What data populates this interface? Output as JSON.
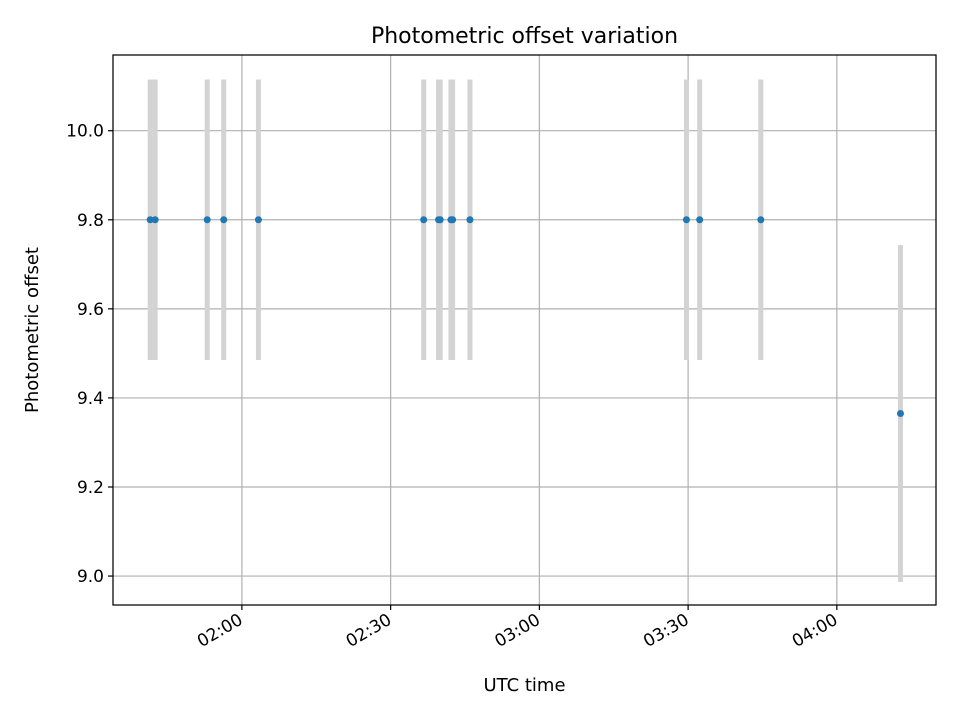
{
  "chart_data": {
    "type": "scatter",
    "title": "Photometric offset variation",
    "xlabel": "UTC time",
    "ylabel": "Photometric offset",
    "xlim": [
      "01:34",
      "04:20"
    ],
    "ylim": [
      8.935,
      10.17
    ],
    "grid": true,
    "x_ticks": [
      "02:00",
      "02:30",
      "03:00",
      "03:30",
      "04:00"
    ],
    "y_ticks": [
      9.0,
      9.2,
      9.4,
      9.6,
      9.8,
      10.0
    ],
    "colors": {
      "marker": "#1f77b4",
      "errorbar": "#d3d3d3",
      "grid": "#b0b0b0"
    },
    "series": [
      {
        "points": [
          {
            "x": "01:41:30",
            "y": 9.8,
            "yerr": 0.315
          },
          {
            "x": "01:42:30",
            "y": 9.8,
            "yerr": 0.315
          },
          {
            "x": "01:53:00",
            "y": 9.8,
            "yerr": 0.315
          },
          {
            "x": "01:56:20",
            "y": 9.8,
            "yerr": 0.315
          },
          {
            "x": "02:03:20",
            "y": 9.8,
            "yerr": 0.315
          },
          {
            "x": "02:36:40",
            "y": 9.8,
            "yerr": 0.315
          },
          {
            "x": "02:39:40",
            "y": 9.8,
            "yerr": 0.315
          },
          {
            "x": "02:40:00",
            "y": 9.8,
            "yerr": 0.315
          },
          {
            "x": "02:42:10",
            "y": 9.8,
            "yerr": 0.315
          },
          {
            "x": "02:42:30",
            "y": 9.8,
            "yerr": 0.315
          },
          {
            "x": "02:46:00",
            "y": 9.8,
            "yerr": 0.315
          },
          {
            "x": "03:29:40",
            "y": 9.8,
            "yerr": 0.315
          },
          {
            "x": "03:32:20",
            "y": 9.8,
            "yerr": 0.315
          },
          {
            "x": "03:44:40",
            "y": 9.8,
            "yerr": 0.315
          },
          {
            "x": "04:12:50",
            "y": 9.365,
            "yerr": 0.378
          }
        ]
      }
    ]
  }
}
